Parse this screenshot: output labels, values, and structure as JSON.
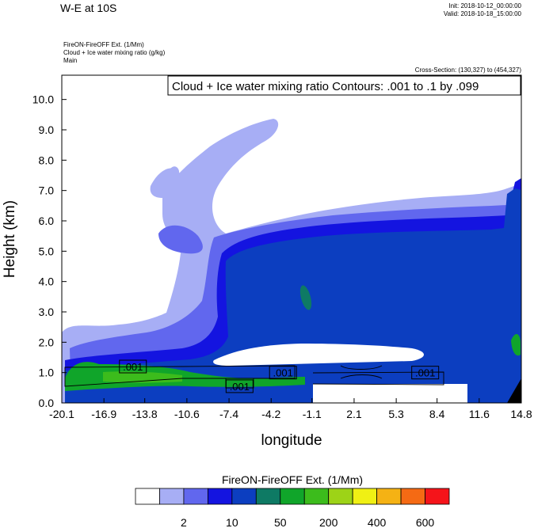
{
  "header": {
    "title": "W-E at 10S",
    "init": "Init: 2018-10-12_00:00:00",
    "valid": "Valid: 2018-10-18_15:00:00",
    "field_lines": [
      "FireON-FireOFF Ext.   (1/Mm)",
      "Cloud + Ice water mixing ratio   (g/kg)",
      "Main"
    ],
    "cross_section": "Cross-Section: (130,327) to (454,327)",
    "contour_info": "Cloud + Ice water mixing ratio Contours: .001 to .1 by .099"
  },
  "chart_data": {
    "type": "heatmap",
    "xlabel": "longitude",
    "ylabel": "Height (km)",
    "x_ticks": [
      "-20.1",
      "-16.9",
      "-13.8",
      "-10.6",
      "-7.4",
      "-4.2",
      "-1.1",
      "2.1",
      "5.3",
      "8.4",
      "11.6",
      "14.8"
    ],
    "y_ticks": [
      "0.0",
      "1.0",
      "2.0",
      "3.0",
      "4.0",
      "5.0",
      "6.0",
      "7.0",
      "8.0",
      "9.0",
      "10.0"
    ],
    "xlim": [
      -20.1,
      14.8
    ],
    "ylim": [
      0.0,
      10.8
    ],
    "contour_labels": [
      {
        "text": ".001",
        "x": -14.7,
        "y": 1.2
      },
      {
        "text": ".001",
        "x": -6.6,
        "y": 0.55
      },
      {
        "text": ".001",
        "x": -3.3,
        "y": 1.0
      },
      {
        "text": ".001",
        "x": 7.5,
        "y": 1.0
      }
    ],
    "colorbar": {
      "title": "FireON-FireOFF Ext.  (1/Mm)",
      "colors": [
        "#ffffff",
        "#a7aef5",
        "#6167ee",
        "#1414e0",
        "#0c3ec0",
        "#0e7a64",
        "#10a52a",
        "#3cbc1c",
        "#9dd317",
        "#f0f014",
        "#f5b214",
        "#f56a14",
        "#f5141a"
      ],
      "tick_labels": [
        "2",
        "10",
        "50",
        "200",
        "400",
        "600"
      ]
    }
  }
}
